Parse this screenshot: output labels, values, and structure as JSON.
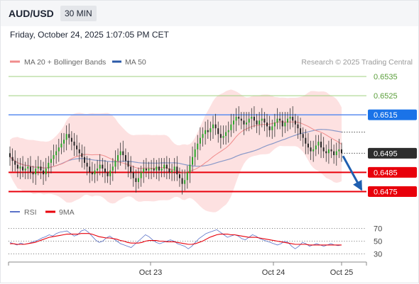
{
  "header": {
    "pair": "AUD/USD",
    "timeframe": "30 MIN",
    "datetime": "Friday, October 24, 2025 1:07:05 PM CET"
  },
  "legend": {
    "ma20": "MA 20 + Bollinger Bands",
    "ma50": "MA 50",
    "credit": "Research © 2025 Trading Central",
    "rsi": "RSI",
    "rsi_ma": "9MA"
  },
  "colors": {
    "bollinger_fill": "#fddcdc",
    "ma20": "#f08c8c",
    "ma50": "#8898c8",
    "candle": "#27a327",
    "resistance_green": "#9fd07f",
    "pivot_blue": "#5b8def",
    "support_red": "#e8000b",
    "current_price_bg": "#2d2d2d",
    "pivot_bg": "#1a73e8",
    "arrow": "#1f5fb0",
    "rsi": "#5a72c8",
    "rsi_ma": "#e8000b"
  },
  "chart_data": [
    {
      "type": "candlestick",
      "ylim": [
        0.6469,
        0.6543
      ],
      "levels": [
        {
          "value": 0.6535,
          "label": "0.6535",
          "style": "resistance"
        },
        {
          "value": 0.6525,
          "label": "0.6525",
          "style": "resistance"
        },
        {
          "value": 0.6515,
          "label": "0.6515",
          "style": "pivot"
        },
        {
          "value": 0.6485,
          "label": "0.6485",
          "style": "support"
        },
        {
          "value": 0.6475,
          "label": "0.6475",
          "style": "support"
        }
      ],
      "current_price": {
        "value": 0.6495,
        "label": "0.6495"
      },
      "x_ticks": [
        "Oct 23",
        "Oct 24",
        "Oct 25"
      ],
      "close": [
        0.6493,
        0.6491,
        0.6489,
        0.6487,
        0.6488,
        0.6486,
        0.6487,
        0.6488,
        0.6485,
        0.6484,
        0.6487,
        0.6488,
        0.6486,
        0.6484,
        0.6487,
        0.649,
        0.6492,
        0.6494,
        0.6496,
        0.6498,
        0.65,
        0.6502,
        0.6505,
        0.6503,
        0.6501,
        0.6499,
        0.6497,
        0.6495,
        0.6493,
        0.649,
        0.6488,
        0.6485,
        0.6484,
        0.6486,
        0.6487,
        0.6489,
        0.6487,
        0.6485,
        0.6483,
        0.6486,
        0.6488,
        0.6491,
        0.6494,
        0.6496,
        0.6494,
        0.6491,
        0.6488,
        0.6485,
        0.6482,
        0.648,
        0.6482,
        0.6485,
        0.6487,
        0.6486,
        0.6487,
        0.6487,
        0.6486,
        0.6488,
        0.6486,
        0.6487,
        0.6489,
        0.6487,
        0.6485,
        0.6486,
        0.6488,
        0.6484,
        0.6482,
        0.6479,
        0.6481,
        0.6485,
        0.6489,
        0.6493,
        0.6497,
        0.65,
        0.6503,
        0.6505,
        0.6507,
        0.6506,
        0.6508,
        0.651,
        0.6508,
        0.6505,
        0.6503,
        0.6504,
        0.6506,
        0.6507,
        0.651,
        0.6512,
        0.6514,
        0.6513,
        0.6512,
        0.651,
        0.6511,
        0.6513,
        0.6514,
        0.6512,
        0.651,
        0.6512,
        0.6513,
        0.6511,
        0.6509,
        0.6507,
        0.6509,
        0.6511,
        0.6513,
        0.6512,
        0.6509,
        0.6511,
        0.6513,
        0.6514,
        0.6512,
        0.651,
        0.6508,
        0.6505,
        0.6503,
        0.65,
        0.6498,
        0.6496,
        0.6497,
        0.6499,
        0.6501,
        0.6498,
        0.6496,
        0.6495,
        0.6497,
        0.6496,
        0.6494,
        0.6496,
        0.6497,
        0.6495
      ]
    },
    {
      "type": "line",
      "ylim": [
        20,
        80
      ],
      "y_ticks": [
        70,
        50,
        30
      ],
      "series": [
        {
          "name": "RSI",
          "values": [
            48,
            46,
            44,
            47,
            45,
            46,
            48,
            50,
            52,
            55,
            57,
            60,
            58,
            62,
            64,
            65,
            66,
            62,
            58,
            60,
            66,
            68,
            64,
            58,
            52,
            48,
            50,
            55,
            58,
            54,
            50,
            46,
            44,
            42,
            40,
            45,
            50,
            55,
            60,
            57,
            52,
            48,
            46,
            48,
            50,
            52,
            50,
            46,
            44,
            42,
            38,
            42,
            48,
            54,
            58,
            62,
            64,
            66,
            68,
            64,
            60,
            56,
            58,
            60,
            58,
            54,
            52,
            56,
            60,
            58,
            54,
            52,
            50,
            48,
            46,
            44,
            46,
            50,
            48,
            42,
            38,
            42,
            48,
            46,
            42,
            44,
            46,
            44,
            42,
            44,
            46,
            44,
            43,
            44
          ]
        },
        {
          "name": "9MA",
          "values": [
            46,
            46,
            45,
            45,
            45,
            46,
            47,
            48,
            50,
            52,
            54,
            56,
            57,
            58,
            59,
            60,
            61,
            61,
            61,
            61,
            62,
            62,
            62,
            61,
            59,
            57,
            56,
            55,
            55,
            54,
            53,
            51,
            50,
            48,
            47,
            47,
            47,
            48,
            50,
            51,
            51,
            51,
            50,
            50,
            49,
            49,
            49,
            48,
            47,
            46,
            45,
            45,
            46,
            48,
            50,
            53,
            56,
            58,
            60,
            61,
            61,
            61,
            60,
            60,
            59,
            58,
            57,
            56,
            56,
            56,
            55,
            54,
            53,
            52,
            51,
            50,
            49,
            48,
            47,
            46,
            45,
            45,
            45,
            45,
            44,
            44,
            44,
            44,
            44,
            44,
            44,
            44,
            44,
            44
          ]
        }
      ]
    }
  ]
}
